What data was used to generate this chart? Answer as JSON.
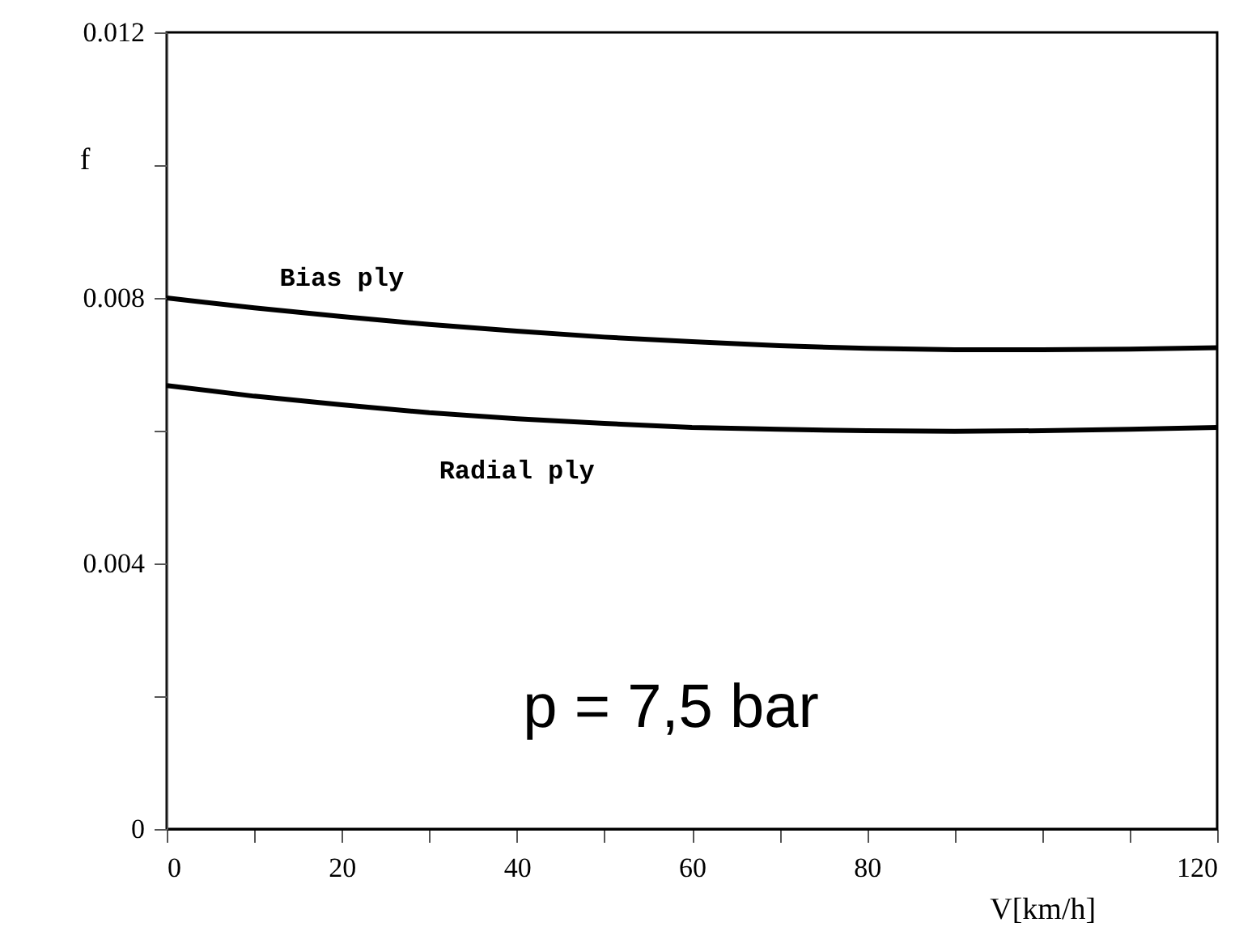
{
  "chart_data": {
    "type": "line",
    "xlabel": "V[km/h]",
    "ylabel": "f",
    "x": [
      0,
      10,
      20,
      30,
      40,
      50,
      60,
      70,
      80,
      90,
      100,
      110,
      120
    ],
    "series": [
      {
        "name": "Bias ply",
        "color": "#000000",
        "values": [
          0.008,
          0.00785,
          0.00772,
          0.0076,
          0.0075,
          0.00741,
          0.00734,
          0.00728,
          0.00724,
          0.00722,
          0.00722,
          0.00723,
          0.00725
        ]
      },
      {
        "name": "Radial ply",
        "color": "#000000",
        "values": [
          0.00668,
          0.00652,
          0.00639,
          0.00627,
          0.00618,
          0.00611,
          0.00605,
          0.00602,
          0.006,
          0.00599,
          0.006,
          0.00602,
          0.00605
        ]
      }
    ],
    "xlim": [
      0,
      120
    ],
    "ylim": [
      0,
      0.012
    ],
    "xticks": [
      0,
      {
        "value": 10,
        "label": null
      },
      20,
      {
        "value": 30,
        "label": null
      },
      40,
      {
        "value": 50,
        "label": null
      },
      60,
      {
        "value": 70,
        "label": null
      },
      80,
      {
        "value": 90,
        "label": null
      },
      {
        "value": 100,
        "label": null
      },
      {
        "value": 110,
        "label": null
      },
      120
    ],
    "yticks": [
      0,
      {
        "value": 0.002,
        "label": null
      },
      0.004,
      {
        "value": 0.006,
        "label": null
      },
      0.008,
      {
        "value": 0.01,
        "label": null
      },
      0.012
    ],
    "annotations": [
      "p = 7,5 bar"
    ],
    "grid": false,
    "legend": false,
    "marker": "none",
    "line_style": "solid"
  }
}
